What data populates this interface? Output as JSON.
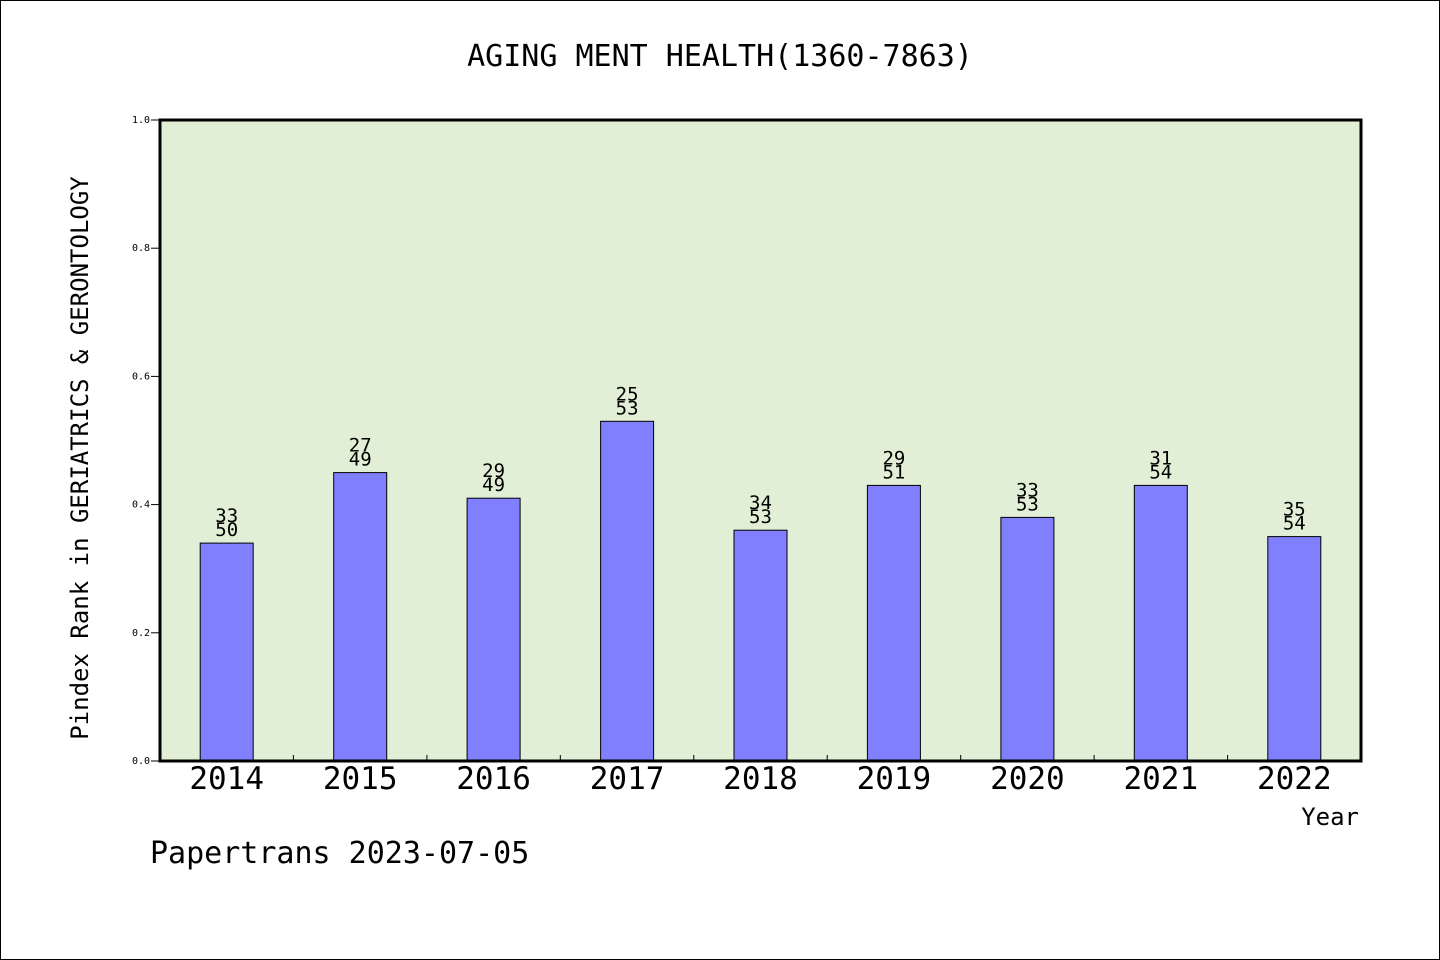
{
  "chart_data": {
    "type": "bar",
    "title": "AGING MENT HEALTH(1360-7863)",
    "xlabel": "Year",
    "ylabel": "Pindex Rank in GERIATRICS & GERONTOLOGY",
    "ylim": [
      0,
      1.0
    ],
    "yticks": [
      "0.0",
      "0.2",
      "0.4",
      "0.6",
      "0.8",
      "1.0"
    ],
    "categories": [
      "2014",
      "2015",
      "2016",
      "2017",
      "2018",
      "2019",
      "2020",
      "2021",
      "2022"
    ],
    "values": [
      0.34,
      0.45,
      0.41,
      0.53,
      0.36,
      0.43,
      0.38,
      0.43,
      0.35
    ],
    "labels_top": [
      "33",
      "27",
      "29",
      "25",
      "34",
      "29",
      "33",
      "31",
      "35"
    ],
    "labels_bottom": [
      "50",
      "49",
      "49",
      "53",
      "53",
      "51",
      "53",
      "54",
      "54"
    ],
    "grid": false,
    "colors": {
      "bar": "#8080ff",
      "plot_background": "#e1efd6",
      "axis": "#000000"
    }
  },
  "footer": {
    "text": "Papertrans 2023-07-05"
  }
}
